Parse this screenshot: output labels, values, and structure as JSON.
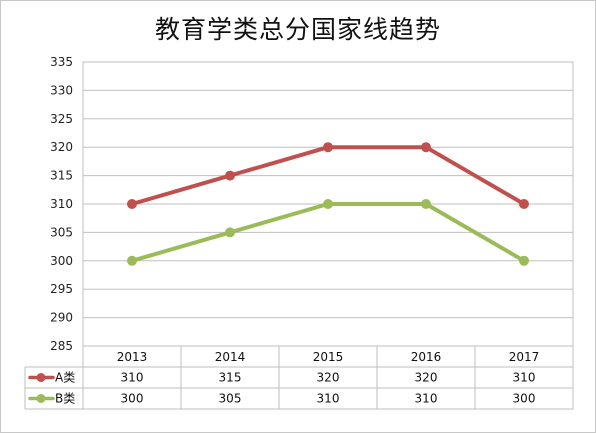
{
  "chart_data": {
    "type": "line",
    "title": "教育学类总分国家线趋势",
    "categories": [
      "2013",
      "2014",
      "2015",
      "2016",
      "2017"
    ],
    "series": [
      {
        "name": "A类",
        "color": "#c0504d",
        "values": [
          310,
          315,
          320,
          320,
          310
        ]
      },
      {
        "name": "B类",
        "color": "#9bbb59",
        "values": [
          300,
          305,
          310,
          310,
          300
        ]
      }
    ],
    "ylim": [
      285,
      335
    ],
    "yticks": [
      285,
      290,
      295,
      300,
      305,
      310,
      315,
      320,
      325,
      330,
      335
    ],
    "grid": true,
    "legend": "data-table"
  }
}
